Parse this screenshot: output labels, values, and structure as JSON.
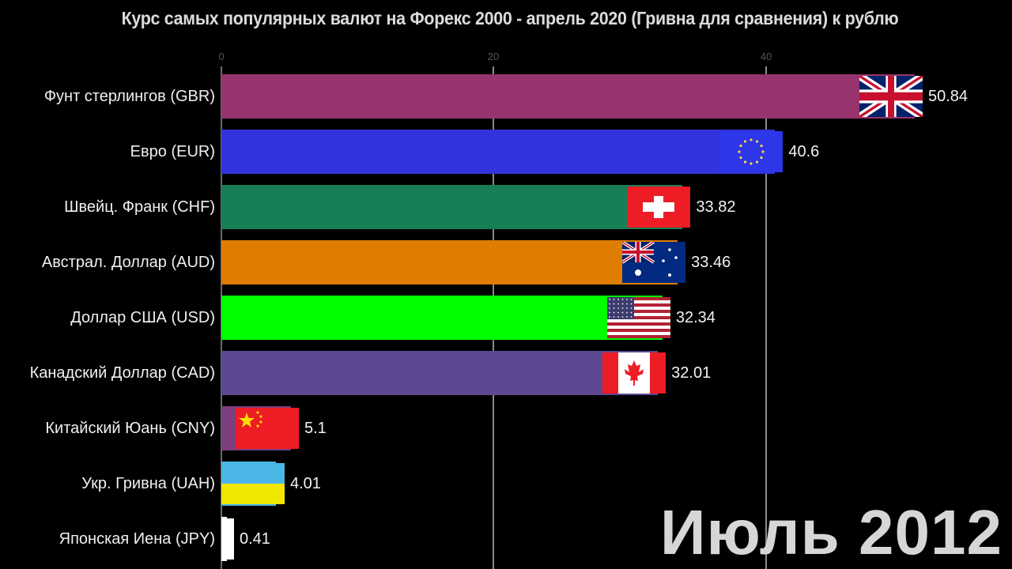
{
  "title": "Курс самых популярных валют на Форекс 2000 - апрель 2020 (Гривна для сравнения) к рублю",
  "period_label": "Июль 2012",
  "axis": {
    "ticks": [
      "0",
      "20",
      "40"
    ]
  },
  "rows": [
    {
      "label": "Фунт стерлингов (GBR)",
      "value": "50.84",
      "color": "#97346d",
      "flag": "uk-flag-icon"
    },
    {
      "label": "Евро (EUR)",
      "value": "40.6",
      "color": "#3333dd",
      "flag": "eu-flag-icon"
    },
    {
      "label": "Швейц. Франк (CHF)",
      "value": "33.82",
      "color": "#167f55",
      "flag": "swiss-flag-icon"
    },
    {
      "label": "Австрал. Доллар (AUD)",
      "value": "33.46",
      "color": "#df7d00",
      "flag": "australia-flag-icon"
    },
    {
      "label": "Доллар США (USD)",
      "value": "32.34",
      "color": "#00ff00",
      "flag": "usa-flag-icon"
    },
    {
      "label": "Канадский Доллар (CAD)",
      "value": "32.01",
      "color": "#5d4891",
      "flag": "canada-flag-icon"
    },
    {
      "label": "Китайский Юань (CNY)",
      "value": "5.1",
      "color": "#7c3f7e",
      "flag": "china-flag-icon"
    },
    {
      "label": "Укр. Гривна (UAH)",
      "value": "4.01",
      "color": "#4ab6e6",
      "flag": "ukraine-flag-icon"
    },
    {
      "label": "Японская Иена (JPY)",
      "value": "0.41",
      "color": "#ffffff",
      "flag": "japan-flag-icon"
    }
  ],
  "chart_data": {
    "type": "bar",
    "orientation": "horizontal",
    "title": "Курс самых популярных валют на Форекс 2000 - апрель 2020 (Гривна для сравнения) к рублю",
    "subtitle": "Июль 2012",
    "xlabel": "",
    "ylabel": "",
    "categories": [
      "Фунт стерлингов (GBR)",
      "Евро (EUR)",
      "Швейц. Франк (CHF)",
      "Австрал. Доллар (AUD)",
      "Доллар США (USD)",
      "Канадский Доллар (CAD)",
      "Китайский Юань (CNY)",
      "Укр. Гривна (UAH)",
      "Японская Иена (JPY)"
    ],
    "values": [
      50.84,
      40.6,
      33.82,
      33.46,
      32.34,
      32.01,
      5.1,
      4.01,
      0.41
    ],
    "x_ticks": [
      0,
      20,
      40
    ],
    "xlim": [
      0,
      58
    ],
    "grid": true,
    "legend": "none",
    "colors": [
      "#97346d",
      "#3333dd",
      "#167f55",
      "#df7d00",
      "#00ff00",
      "#5d4891",
      "#7c3f7e",
      "#4ab6e6",
      "#ffffff"
    ]
  }
}
